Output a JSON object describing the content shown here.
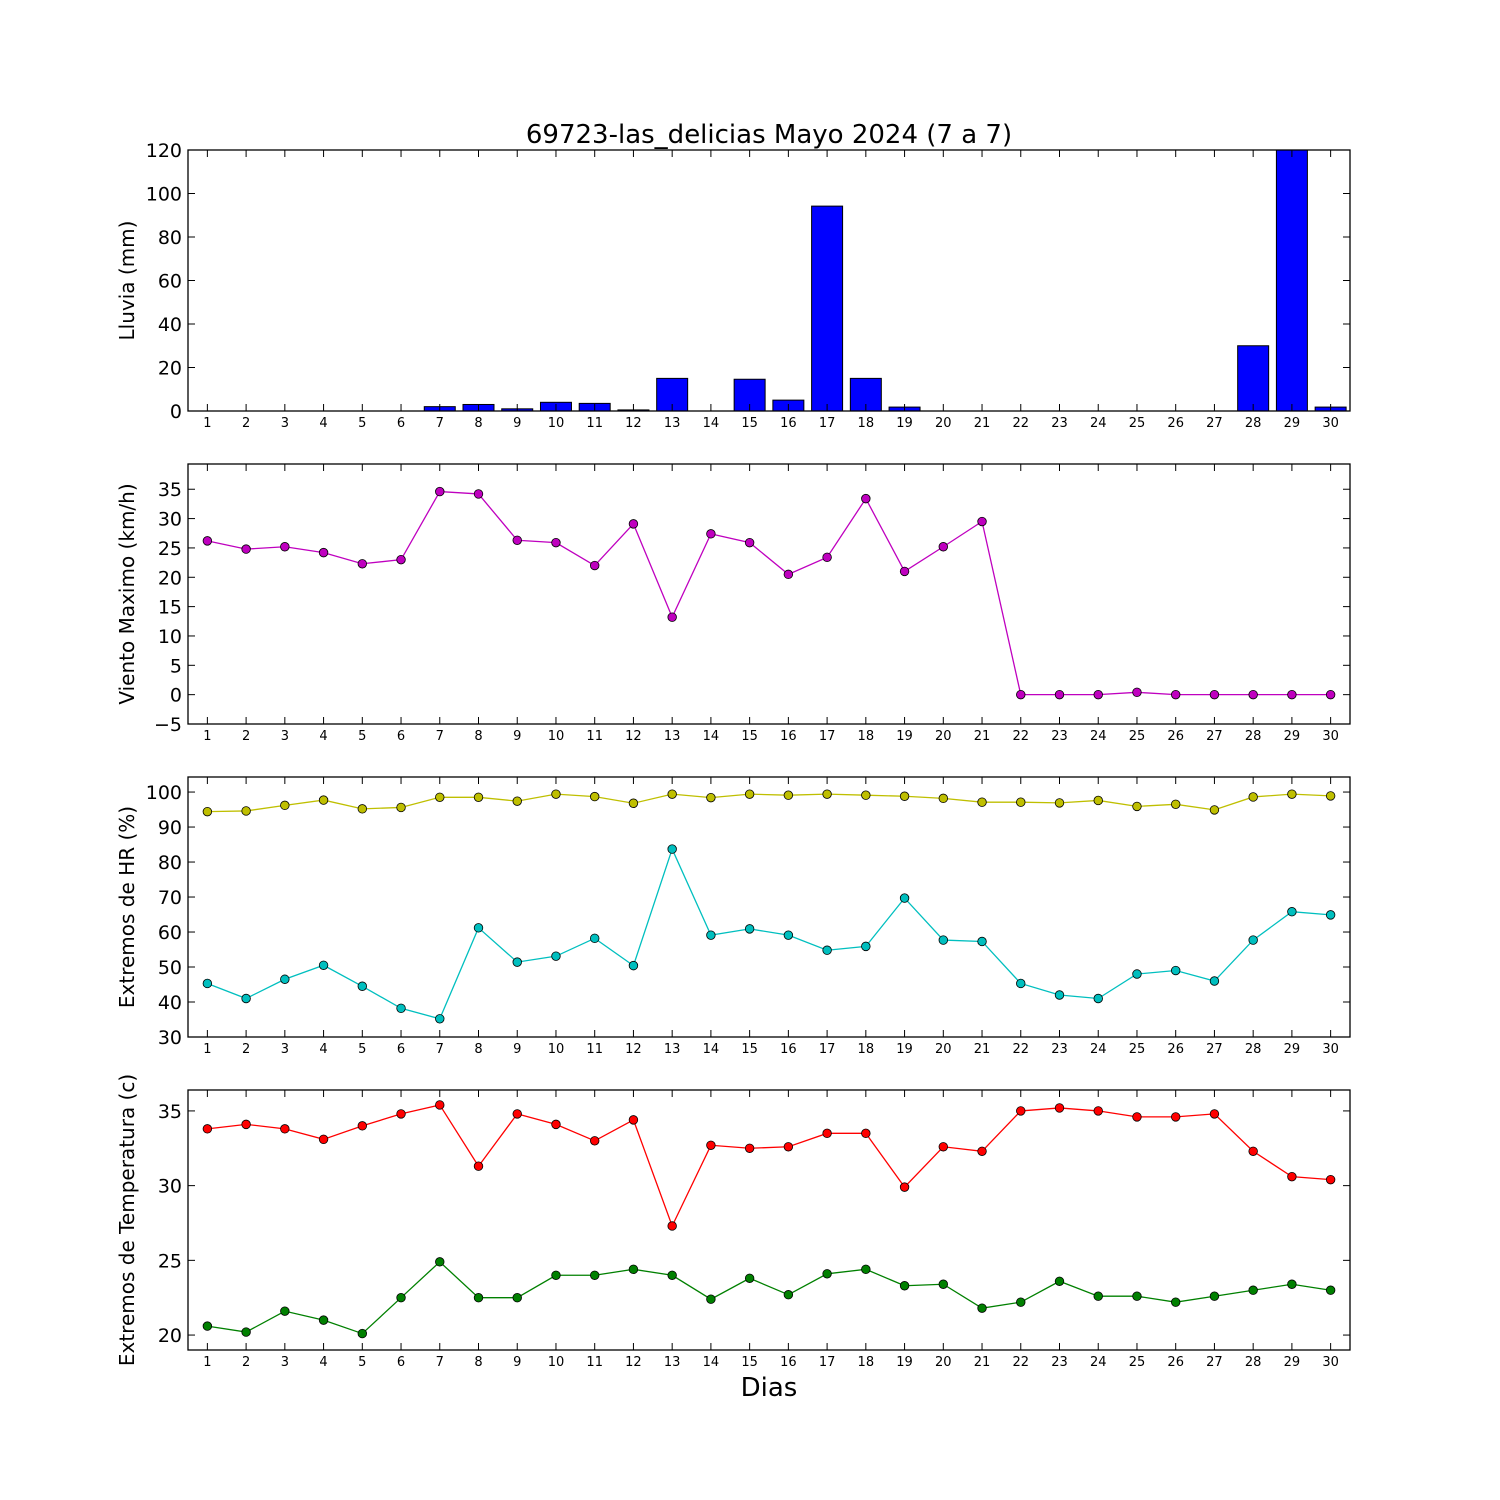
{
  "chart_data": [
    {
      "type": "bar",
      "title": "69723-las_delicias Mayo 2024  (7 a 7)",
      "ylabel": "Lluvia (mm)",
      "xlabel": "",
      "ylim": [
        0,
        120
      ],
      "yticks": [
        0,
        20,
        40,
        60,
        80,
        100,
        120
      ],
      "x": [
        1,
        2,
        3,
        4,
        5,
        6,
        7,
        8,
        9,
        10,
        11,
        12,
        13,
        14,
        15,
        16,
        17,
        18,
        19,
        20,
        21,
        22,
        23,
        24,
        25,
        26,
        27,
        28,
        29,
        30
      ],
      "series": [
        {
          "values": [
            0,
            0,
            0,
            0,
            0,
            0,
            2,
            3,
            1,
            4,
            3.5,
            0.5,
            15,
            0,
            14.6,
            5,
            94.2,
            15,
            1.8,
            0,
            0,
            0,
            0,
            0,
            0,
            0,
            0,
            30,
            120,
            1.8
          ],
          "color": "#0000ff"
        }
      ]
    },
    {
      "type": "line",
      "title": "",
      "ylabel": "Viento Maximo (km/h)",
      "xlabel": "",
      "ylim": [
        -5,
        39.3
      ],
      "yticks": [
        -5,
        0,
        5,
        10,
        15,
        20,
        25,
        30,
        35
      ],
      "x": [
        1,
        2,
        3,
        4,
        5,
        6,
        7,
        8,
        9,
        10,
        11,
        12,
        13,
        14,
        15,
        16,
        17,
        18,
        19,
        20,
        21,
        22,
        23,
        24,
        25,
        26,
        27,
        28,
        29,
        30
      ],
      "series": [
        {
          "values": [
            26.2,
            24.8,
            25.2,
            24.2,
            22.3,
            23.0,
            34.6,
            34.2,
            26.3,
            25.9,
            22.0,
            29.1,
            13.2,
            27.4,
            25.9,
            20.5,
            23.4,
            33.4,
            21.0,
            25.2,
            29.5,
            0,
            0,
            0,
            0.4,
            0,
            0,
            0,
            0,
            0
          ],
          "color": "#bf00bf"
        }
      ]
    },
    {
      "type": "line",
      "title": "",
      "ylabel": "Extremos de HR (%)",
      "xlabel": "",
      "ylim": [
        30,
        104.3
      ],
      "yticks": [
        30,
        40,
        50,
        60,
        70,
        80,
        90,
        100
      ],
      "x": [
        1,
        2,
        3,
        4,
        5,
        6,
        7,
        8,
        9,
        10,
        11,
        12,
        13,
        14,
        15,
        16,
        17,
        18,
        19,
        20,
        21,
        22,
        23,
        24,
        25,
        26,
        27,
        28,
        29,
        30
      ],
      "series": [
        {
          "values": [
            94.4,
            94.6,
            96.2,
            97.7,
            95.2,
            95.6,
            98.5,
            98.5,
            97.4,
            99.4,
            98.7,
            96.8,
            99.4,
            98.4,
            99.4,
            99.1,
            99.4,
            99.1,
            98.8,
            98.2,
            97.1,
            97.1,
            96.9,
            97.6,
            95.9,
            96.5,
            94.9,
            98.6,
            99.4,
            98.9
          ],
          "color": "#bfbf00"
        },
        {
          "values": [
            45.3,
            41.0,
            46.5,
            50.5,
            44.5,
            38.2,
            35.2,
            61.2,
            51.4,
            53.1,
            58.2,
            50.4,
            83.7,
            59.1,
            60.9,
            59.1,
            54.8,
            55.9,
            69.7,
            57.7,
            57.3,
            45.3,
            42.0,
            41.0,
            48.0,
            49.0,
            46.0,
            57.7,
            65.8,
            64.9
          ],
          "color": "#00bfbf"
        }
      ]
    },
    {
      "type": "line",
      "title": "",
      "ylabel": "Extremos de Temperatura (c)",
      "xlabel": "Dias",
      "ylim": [
        19,
        36.4
      ],
      "yticks": [
        20,
        25,
        30,
        35
      ],
      "x": [
        1,
        2,
        3,
        4,
        5,
        6,
        7,
        8,
        9,
        10,
        11,
        12,
        13,
        14,
        15,
        16,
        17,
        18,
        19,
        20,
        21,
        22,
        23,
        24,
        25,
        26,
        27,
        28,
        29,
        30
      ],
      "series": [
        {
          "values": [
            33.8,
            34.1,
            33.8,
            33.1,
            34.0,
            34.8,
            35.4,
            31.3,
            34.8,
            34.1,
            33.0,
            34.4,
            27.3,
            32.7,
            32.5,
            32.6,
            33.5,
            33.5,
            29.9,
            32.6,
            32.3,
            35.0,
            35.2,
            35.0,
            34.6,
            34.6,
            34.8,
            32.3,
            30.6,
            30.4
          ],
          "color": "#ff0000"
        },
        {
          "values": [
            20.6,
            20.2,
            21.6,
            21.0,
            20.1,
            22.5,
            24.9,
            22.5,
            22.5,
            24.0,
            24.0,
            24.4,
            24.0,
            22.4,
            23.8,
            22.7,
            24.1,
            24.4,
            23.3,
            23.4,
            21.8,
            22.2,
            23.6,
            22.6,
            22.6,
            22.2,
            22.6,
            23.0,
            23.4,
            23.0
          ],
          "color": "#008000"
        }
      ]
    }
  ]
}
